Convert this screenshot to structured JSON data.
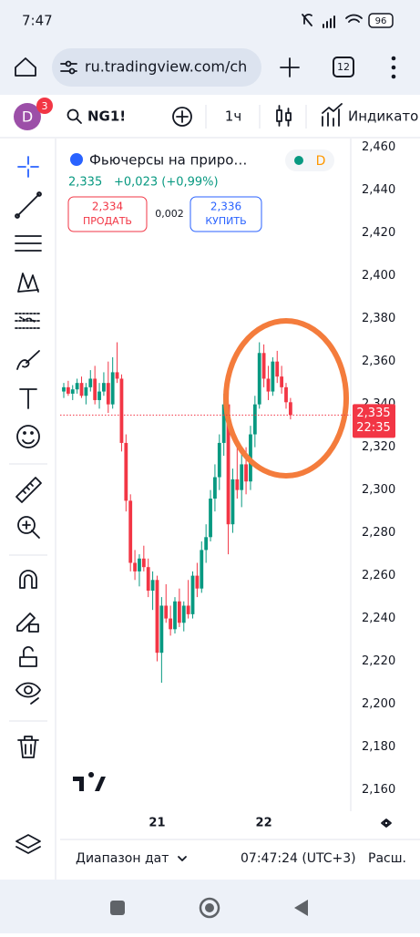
{
  "status_bar": {
    "time": "7:47",
    "battery": "96"
  },
  "browser": {
    "url": "ru.tradingview.com/ch",
    "tab_count": "12"
  },
  "toolbar": {
    "avatar": "D",
    "badge": "3",
    "symbol": "NG1!",
    "interval": "1ч",
    "indicators": "Индикато"
  },
  "legend": {
    "name": "Фьючерсы на приро…",
    "badge": "D",
    "price": "2,335",
    "change": "+0,023 (+0,99%)",
    "sell_price": "2,334",
    "sell": "ПРОДАТЬ",
    "spread": "0,002",
    "buy_price": "2,336",
    "buy": "КУПИТЬ"
  },
  "chart_data": {
    "type": "candlestick",
    "categories": [
      null,
      null,
      null,
      null,
      null,
      null,
      null,
      null,
      null,
      null,
      null,
      null,
      null,
      null,
      null,
      null,
      null,
      null,
      null,
      null,
      null,
      "21",
      null,
      null,
      null,
      null,
      null,
      null,
      null,
      null,
      null,
      null,
      null,
      null,
      null,
      null,
      null,
      null,
      null,
      null,
      null,
      null,
      null,
      null,
      null,
      "22",
      null,
      null,
      null,
      null,
      null,
      null
    ],
    "open": [
      2346,
      2348,
      2345,
      2347,
      2350,
      2344,
      2348,
      2352,
      2342,
      2346,
      2350,
      2340,
      2355,
      2352,
      2322,
      2295,
      2266,
      2262,
      2268,
      2264,
      2253,
      2258,
      2224,
      2246,
      2240,
      2235,
      2248,
      2238,
      2246,
      2242,
      2260,
      2254,
      2272,
      2278,
      2296,
      2306,
      2322,
      2340,
      2284,
      2305,
      2300,
      2312,
      2304,
      2326,
      2340,
      2364,
      2352,
      2346,
      2360,
      2353,
      2348,
      2341
    ],
    "high": [
      2350,
      2351,
      2349,
      2352,
      2353,
      2350,
      2356,
      2358,
      2350,
      2355,
      2360,
      2362,
      2369,
      2354,
      2326,
      2298,
      2272,
      2270,
      2274,
      2268,
      2262,
      2260,
      2250,
      2256,
      2246,
      2250,
      2254,
      2248,
      2258,
      2262,
      2266,
      2276,
      2284,
      2300,
      2312,
      2326,
      2345,
      2346,
      2310,
      2322,
      2318,
      2320,
      2330,
      2344,
      2369,
      2368,
      2358,
      2362,
      2365,
      2358,
      2350,
      2343
    ],
    "low": [
      2343,
      2344,
      2342,
      2345,
      2343,
      2340,
      2346,
      2340,
      2338,
      2344,
      2336,
      2338,
      2350,
      2318,
      2290,
      2262,
      2258,
      2255,
      2262,
      2250,
      2244,
      2220,
      2210,
      2238,
      2232,
      2233,
      2236,
      2234,
      2240,
      2240,
      2250,
      2252,
      2266,
      2276,
      2290,
      2300,
      2316,
      2270,
      2280,
      2296,
      2292,
      2298,
      2300,
      2320,
      2338,
      2348,
      2342,
      2344,
      2350,
      2345,
      2338,
      2333
    ],
    "close": [
      2348,
      2345,
      2347,
      2350,
      2344,
      2348,
      2352,
      2342,
      2346,
      2350,
      2340,
      2355,
      2352,
      2322,
      2295,
      2266,
      2262,
      2268,
      2264,
      2253,
      2258,
      2224,
      2246,
      2240,
      2235,
      2248,
      2238,
      2246,
      2242,
      2260,
      2254,
      2272,
      2278,
      2296,
      2306,
      2322,
      2340,
      2284,
      2305,
      2300,
      2312,
      2304,
      2326,
      2340,
      2364,
      2352,
      2346,
      2360,
      2353,
      2348,
      2341,
      2335
    ],
    "up_color": "#089981",
    "down_color": "#f23645",
    "ylim": [
      2150,
      2465
    ],
    "yticks": [
      {
        "value": 2160,
        "label": "2,160"
      },
      {
        "value": 2180,
        "label": "2,180"
      },
      {
        "value": 2200,
        "label": "2,200"
      },
      {
        "value": 2220,
        "label": "2,220"
      },
      {
        "value": 2240,
        "label": "2,240"
      },
      {
        "value": 2260,
        "label": "2,260"
      },
      {
        "value": 2280,
        "label": "2,280"
      },
      {
        "value": 2300,
        "label": "2,300"
      },
      {
        "value": 2320,
        "label": "2,320"
      },
      {
        "value": 2340,
        "label": "2,340"
      },
      {
        "value": 2360,
        "label": "2,360"
      },
      {
        "value": 2380,
        "label": "2,380"
      },
      {
        "value": 2400,
        "label": "2,400"
      },
      {
        "value": 2420,
        "label": "2,420"
      },
      {
        "value": 2440,
        "label": "2,440"
      },
      {
        "value": 2460,
        "label": "2,460"
      }
    ],
    "last_price": {
      "value": 2335,
      "label": "2,335"
    },
    "countdown": "22:35"
  },
  "footer": {
    "range": "Диапазон дат",
    "time": "07:47:24 (UTC+3)",
    "more": "Расш."
  }
}
